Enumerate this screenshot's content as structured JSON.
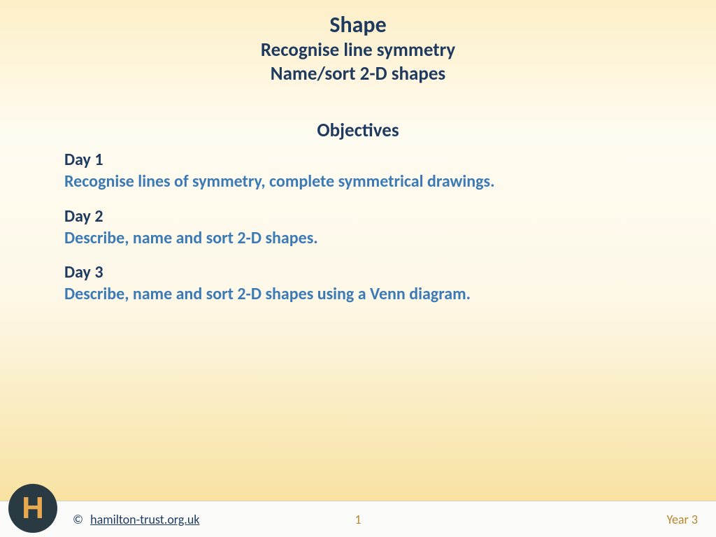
{
  "header": {
    "title": "Shape",
    "subtitle1": "Recognise line symmetry",
    "subtitle2": "Name/sort 2-D shapes"
  },
  "objectives": {
    "heading": "Objectives",
    "days": [
      {
        "label": "Day 1",
        "description": "Recognise lines of symmetry, complete symmetrical drawings."
      },
      {
        "label": "Day 2",
        "description": "Describe, name and sort 2-D shapes."
      },
      {
        "label": "Day 3",
        "description": "Describe, name and sort 2-D shapes using a Venn diagram."
      }
    ]
  },
  "footer": {
    "logo_letter": "H",
    "copyright_symbol": "©",
    "link_text": "hamilton-trust.org.uk",
    "page_number": "1",
    "year_label": "Year 3"
  },
  "colors": {
    "heading_text": "#1f3a5f",
    "accent_text": "#3b7ab5",
    "footer_accent": "#b8862f",
    "logo_bg": "#2a3a42",
    "logo_fg": "#e9a94f",
    "footer_bg": "#fafaf8"
  }
}
